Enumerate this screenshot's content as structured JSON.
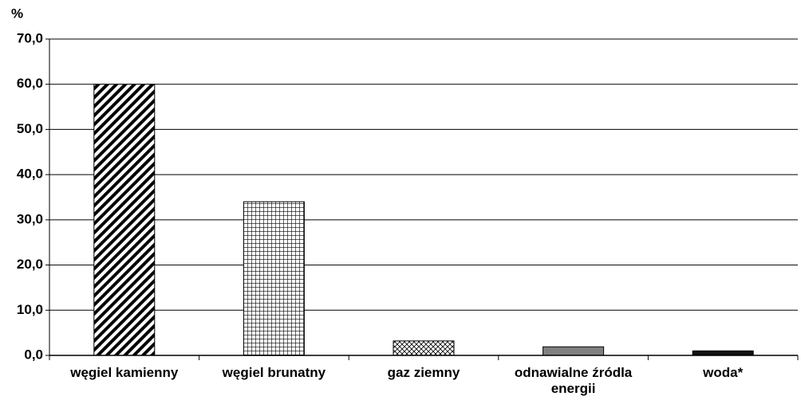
{
  "chart_data": {
    "type": "bar",
    "y_unit": "%",
    "categories": [
      "węgiel kamienny",
      "węgiel brunatny",
      "gaz ziemny",
      "odnawialne źródla energii",
      "woda*"
    ],
    "values": [
      60.0,
      34.0,
      3.2,
      1.9,
      1.0
    ],
    "bar_styles": [
      "diagonal",
      "grid",
      "crosshatch",
      "#808080",
      "#111111"
    ],
    "ylim": [
      0,
      70
    ],
    "yticks": [
      {
        "value": 0,
        "label": "0,0"
      },
      {
        "value": 10,
        "label": "10,0"
      },
      {
        "value": 20,
        "label": "20,0"
      },
      {
        "value": 30,
        "label": "30,0"
      },
      {
        "value": 40,
        "label": "40,0"
      },
      {
        "value": 50,
        "label": "50,0"
      },
      {
        "value": 60,
        "label": "60,0"
      },
      {
        "value": 70,
        "label": "70,0"
      }
    ],
    "grid": true
  }
}
